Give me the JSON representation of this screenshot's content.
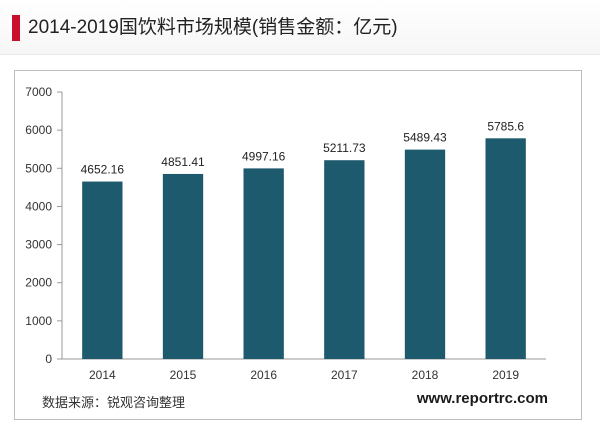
{
  "header": {
    "title": "2014-2019国饮料市场规模(销售金额：亿元)",
    "accent_color": "#c8102e"
  },
  "footer": {
    "source": "数据来源：锐观咨询整理",
    "website": "www.reportrc.com"
  },
  "chart_data": {
    "type": "bar",
    "title": "2014-2019国饮料市场规模(销售金额：亿元)",
    "xlabel": "",
    "ylabel": "",
    "categories": [
      "2014",
      "2015",
      "2016",
      "2017",
      "2018",
      "2019"
    ],
    "values": [
      4652.16,
      4851.41,
      4997.16,
      5211.73,
      5489.43,
      5785.6
    ],
    "value_labels": [
      "4652.16",
      "4851.41",
      "4997.16",
      "5211.73",
      "5489.43",
      "5785.6"
    ],
    "ylim": [
      0,
      7000
    ],
    "yticks": [
      0,
      1000,
      2000,
      3000,
      4000,
      5000,
      6000,
      7000
    ],
    "grid": false,
    "legend": "none",
    "bar_color": "#1d5a6e"
  }
}
